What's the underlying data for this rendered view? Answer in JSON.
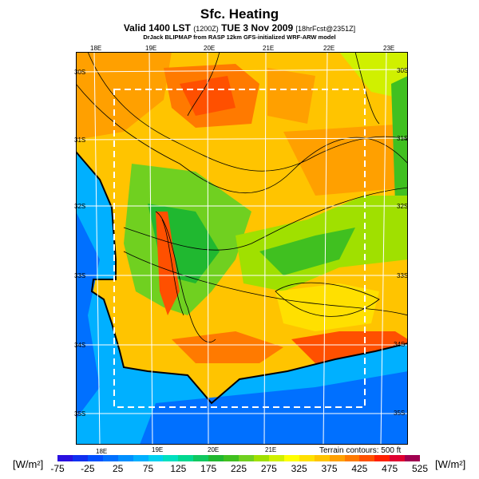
{
  "header": {
    "title": "Sfc. Heating",
    "subtitle": "Valid 1400 LST",
    "subtitle_code": "(1200Z)",
    "subtitle_date": "TUE 3 Nov 2009",
    "subtitle_fcst": "[18hrFcst@2351Z]",
    "credit": "DrJack BLIPMAP from RASP 12km GFS-initialized WRF-ARW model"
  },
  "axes": {
    "top_lon": [
      "18E",
      "19E",
      "20E",
      "21E",
      "22E",
      "23E"
    ],
    "bottom_lon": [
      "18E",
      "19E",
      "20E",
      "21E"
    ],
    "left_lat": [
      "30S",
      "31S",
      "32S",
      "33S",
      "34S",
      "35S"
    ],
    "right_lat": [
      "30S",
      "31S",
      "32S",
      "33S",
      "34S",
      "35S"
    ]
  },
  "terrain_note": "Terrain contours: 500 ft",
  "colorbar": {
    "unit": "[W/m²]",
    "ticks": [
      "-75",
      "-25",
      "25",
      "75",
      "125",
      "175",
      "225",
      "275",
      "325",
      "375",
      "425",
      "475",
      "525"
    ],
    "colors": [
      "#2a10e0",
      "#1030f0",
      "#0050ff",
      "#0070ff",
      "#0090ff",
      "#00b0ff",
      "#00d0f0",
      "#00e0c0",
      "#00d890",
      "#10c860",
      "#20b830",
      "#40c020",
      "#70d020",
      "#a0e000",
      "#d0f000",
      "#ffff00",
      "#ffe000",
      "#ffc400",
      "#ffa000",
      "#ff7a00",
      "#ff5000",
      "#ff2000",
      "#e00030",
      "#a00050"
    ]
  }
}
